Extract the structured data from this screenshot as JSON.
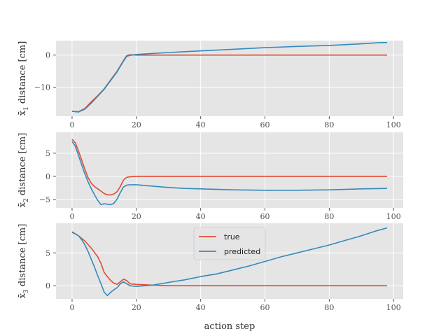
{
  "colors": {
    "true": "#E24A33",
    "predicted": "#348ABD",
    "panel_bg": "#E5E5E5",
    "grid": "#FFFFFF",
    "tick_text": "#4D4D4D"
  },
  "chart_data": [
    {
      "type": "line",
      "ylabel_var": "x̄",
      "ylabel_sub": "1",
      "ylabel_text": " distance [cm]",
      "xlim": [
        -5,
        103
      ],
      "ylim": [
        -19,
        4.5
      ],
      "xticks": [
        0,
        20,
        40,
        60,
        80,
        100
      ],
      "yticks": [
        0,
        -10
      ],
      "ytick_labels": [
        "0",
        "−10"
      ],
      "grid": true,
      "series": [
        {
          "name": "true",
          "color": "true",
          "points": [
            [
              0,
              -17.5
            ],
            [
              2,
              -17.6
            ],
            [
              4,
              -16.6
            ],
            [
              6,
              -14.5
            ],
            [
              8,
              -12.6
            ],
            [
              10,
              -10.5
            ],
            [
              12,
              -7.7
            ],
            [
              14,
              -5
            ],
            [
              16,
              -1.7
            ],
            [
              17,
              -0.2
            ],
            [
              18,
              0.1
            ],
            [
              20,
              0
            ],
            [
              30,
              0
            ],
            [
              40,
              0
            ],
            [
              50,
              0
            ],
            [
              60,
              0
            ],
            [
              70,
              0
            ],
            [
              80,
              0
            ],
            [
              90,
              0
            ],
            [
              98,
              0
            ]
          ]
        },
        {
          "name": "predicted",
          "color": "predicted",
          "points": [
            [
              0,
              -17.5
            ],
            [
              2,
              -17.7
            ],
            [
              4,
              -16.8
            ],
            [
              6,
              -14.9
            ],
            [
              8,
              -12.8
            ],
            [
              10,
              -10.6
            ],
            [
              12,
              -7.9
            ],
            [
              14,
              -5.2
            ],
            [
              16,
              -1.9
            ],
            [
              17,
              -0.4
            ],
            [
              18,
              -0.1
            ],
            [
              20,
              0.2
            ],
            [
              30,
              0.8
            ],
            [
              40,
              1.3
            ],
            [
              50,
              1.8
            ],
            [
              60,
              2.3
            ],
            [
              70,
              2.7
            ],
            [
              80,
              3.0
            ],
            [
              90,
              3.5
            ],
            [
              96,
              3.9
            ],
            [
              98,
              3.9
            ]
          ]
        }
      ]
    },
    {
      "type": "line",
      "ylabel_var": "x̄",
      "ylabel_sub": "2",
      "ylabel_text": " distance [cm]",
      "xlim": [
        -5,
        103
      ],
      "ylim": [
        -6.8,
        9.5
      ],
      "xticks": [
        0,
        20,
        40,
        60,
        80,
        100
      ],
      "yticks": [
        5,
        0,
        -5
      ],
      "ytick_labels": [
        "5",
        "0",
        "−5"
      ],
      "grid": true,
      "series": [
        {
          "name": "true",
          "color": "true",
          "points": [
            [
              0,
              8.0
            ],
            [
              1,
              7.2
            ],
            [
              2,
              5.5
            ],
            [
              3,
              3.5
            ],
            [
              4,
              1.5
            ],
            [
              5,
              -0.3
            ],
            [
              6,
              -1.5
            ],
            [
              7,
              -2.2
            ],
            [
              8,
              -2.7
            ],
            [
              9,
              -3.2
            ],
            [
              10,
              -3.7
            ],
            [
              11,
              -4.0
            ],
            [
              12,
              -4.0
            ],
            [
              13,
              -3.8
            ],
            [
              14,
              -3.3
            ],
            [
              15,
              -2.2
            ],
            [
              16,
              -0.8
            ],
            [
              17,
              -0.2
            ],
            [
              18,
              -0.1
            ],
            [
              20,
              0
            ],
            [
              30,
              0
            ],
            [
              40,
              0
            ],
            [
              50,
              0
            ],
            [
              60,
              0
            ],
            [
              70,
              0
            ],
            [
              80,
              0
            ],
            [
              90,
              0
            ],
            [
              98,
              0
            ]
          ]
        },
        {
          "name": "predicted",
          "color": "predicted",
          "points": [
            [
              0,
              7.5
            ],
            [
              1,
              6.5
            ],
            [
              2,
              4.5
            ],
            [
              3,
              2.5
            ],
            [
              4,
              0.5
            ],
            [
              5,
              -1.2
            ],
            [
              6,
              -2.7
            ],
            [
              7,
              -4.0
            ],
            [
              8,
              -5.2
            ],
            [
              9,
              -6.1
            ],
            [
              10,
              -5.9
            ],
            [
              11,
              -6.0
            ],
            [
              12,
              -6.1
            ],
            [
              13,
              -5.8
            ],
            [
              14,
              -4.9
            ],
            [
              15,
              -3.5
            ],
            [
              16,
              -2.3
            ],
            [
              17,
              -1.9
            ],
            [
              18,
              -1.8
            ],
            [
              20,
              -1.8
            ],
            [
              25,
              -2.1
            ],
            [
              30,
              -2.4
            ],
            [
              35,
              -2.6
            ],
            [
              40,
              -2.7
            ],
            [
              50,
              -2.9
            ],
            [
              60,
              -3.0
            ],
            [
              70,
              -3.0
            ],
            [
              80,
              -2.9
            ],
            [
              90,
              -2.7
            ],
            [
              98,
              -2.6
            ]
          ]
        }
      ]
    },
    {
      "type": "line",
      "ylabel_var": "x̄",
      "ylabel_sub": "3",
      "ylabel_text": " distance [cm]",
      "xlim": [
        -5,
        103
      ],
      "ylim": [
        -2.0,
        9.5
      ],
      "xticks": [
        0,
        20,
        40,
        60,
        80,
        100
      ],
      "xtick_labels": [
        "0",
        "20",
        "40",
        "60",
        "80",
        "100"
      ],
      "yticks": [
        5,
        0
      ],
      "ytick_labels": [
        "5",
        "0"
      ],
      "xlabel": "action step",
      "grid": true,
      "legend": {
        "position": "upper-center",
        "entries": [
          "true",
          "predicted"
        ]
      },
      "series": [
        {
          "name": "true",
          "color": "true",
          "points": [
            [
              0,
              8.2
            ],
            [
              2,
              7.6
            ],
            [
              4,
              6.8
            ],
            [
              6,
              5.7
            ],
            [
              8,
              4.4
            ],
            [
              9,
              3.4
            ],
            [
              10,
              2.0
            ],
            [
              11,
              1.4
            ],
            [
              12,
              0.8
            ],
            [
              13,
              0.4
            ],
            [
              14,
              0.2
            ],
            [
              15,
              0.6
            ],
            [
              16,
              1.0
            ],
            [
              17,
              0.8
            ],
            [
              18,
              0.3
            ],
            [
              20,
              0.2
            ],
            [
              25,
              0.1
            ],
            [
              30,
              0.0
            ],
            [
              40,
              0.0
            ],
            [
              50,
              0.0
            ],
            [
              60,
              0.0
            ],
            [
              70,
              0.0
            ],
            [
              80,
              0.0
            ],
            [
              90,
              0.0
            ],
            [
              98,
              0.0
            ]
          ]
        },
        {
          "name": "predicted",
          "color": "predicted",
          "points": [
            [
              0,
              8.1
            ],
            [
              1,
              7.9
            ],
            [
              2,
              7.6
            ],
            [
              3,
              7.0
            ],
            [
              4,
              6.2
            ],
            [
              5,
              5.2
            ],
            [
              6,
              4.0
            ],
            [
              7,
              2.8
            ],
            [
              8,
              1.5
            ],
            [
              9,
              0.3
            ],
            [
              10,
              -1.0
            ],
            [
              11,
              -1.5
            ],
            [
              12,
              -1.0
            ],
            [
              13,
              -0.6
            ],
            [
              14,
              -0.3
            ],
            [
              15,
              0.3
            ],
            [
              16,
              0.6
            ],
            [
              17,
              0.3
            ],
            [
              18,
              0.0
            ],
            [
              20,
              -0.1
            ],
            [
              25,
              0.1
            ],
            [
              30,
              0.5
            ],
            [
              35,
              0.9
            ],
            [
              40,
              1.4
            ],
            [
              45,
              1.8
            ],
            [
              50,
              2.4
            ],
            [
              55,
              3.0
            ],
            [
              60,
              3.7
            ],
            [
              65,
              4.4
            ],
            [
              70,
              5.0
            ],
            [
              75,
              5.6
            ],
            [
              80,
              6.2
            ],
            [
              85,
              6.9
            ],
            [
              90,
              7.6
            ],
            [
              95,
              8.4
            ],
            [
              98,
              8.8
            ]
          ]
        }
      ]
    }
  ]
}
